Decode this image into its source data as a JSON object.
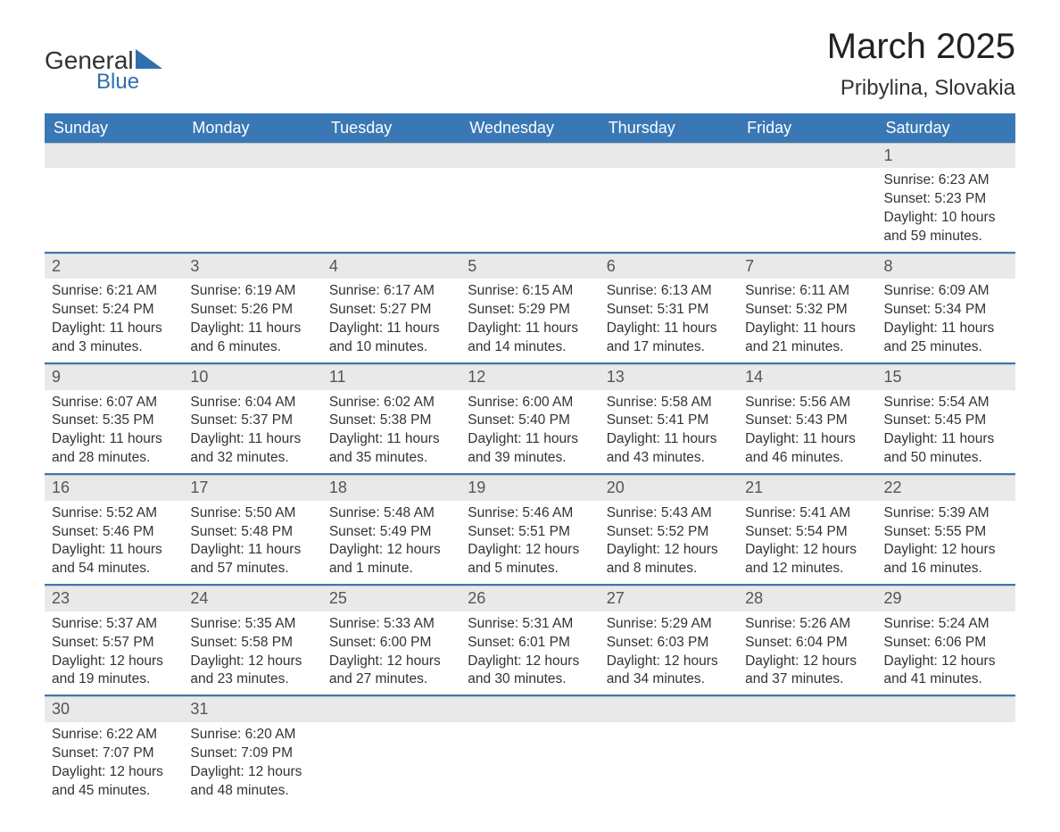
{
  "brand": {
    "general": "General",
    "blue": "Blue"
  },
  "title": "March 2025",
  "location": "Pribylina, Slovakia",
  "colors": {
    "header_bg": "#3a78b5",
    "header_text": "#ffffff",
    "daynum_bg": "#e9e9e9",
    "row_border": "#3a78b5",
    "body_text": "#333333",
    "logo_blue": "#2f6fad"
  },
  "font": {
    "family": "Arial",
    "title_size_pt": 30,
    "location_size_pt": 18,
    "header_size_pt": 14,
    "body_size_pt": 11
  },
  "days_of_week": [
    "Sunday",
    "Monday",
    "Tuesday",
    "Wednesday",
    "Thursday",
    "Friday",
    "Saturday"
  ],
  "weeks": [
    [
      null,
      null,
      null,
      null,
      null,
      null,
      {
        "day": "1",
        "sunrise": "Sunrise: 6:23 AM",
        "sunset": "Sunset: 5:23 PM",
        "daylight": "Daylight: 10 hours and 59 minutes."
      }
    ],
    [
      {
        "day": "2",
        "sunrise": "Sunrise: 6:21 AM",
        "sunset": "Sunset: 5:24 PM",
        "daylight": "Daylight: 11 hours and 3 minutes."
      },
      {
        "day": "3",
        "sunrise": "Sunrise: 6:19 AM",
        "sunset": "Sunset: 5:26 PM",
        "daylight": "Daylight: 11 hours and 6 minutes."
      },
      {
        "day": "4",
        "sunrise": "Sunrise: 6:17 AM",
        "sunset": "Sunset: 5:27 PM",
        "daylight": "Daylight: 11 hours and 10 minutes."
      },
      {
        "day": "5",
        "sunrise": "Sunrise: 6:15 AM",
        "sunset": "Sunset: 5:29 PM",
        "daylight": "Daylight: 11 hours and 14 minutes."
      },
      {
        "day": "6",
        "sunrise": "Sunrise: 6:13 AM",
        "sunset": "Sunset: 5:31 PM",
        "daylight": "Daylight: 11 hours and 17 minutes."
      },
      {
        "day": "7",
        "sunrise": "Sunrise: 6:11 AM",
        "sunset": "Sunset: 5:32 PM",
        "daylight": "Daylight: 11 hours and 21 minutes."
      },
      {
        "day": "8",
        "sunrise": "Sunrise: 6:09 AM",
        "sunset": "Sunset: 5:34 PM",
        "daylight": "Daylight: 11 hours and 25 minutes."
      }
    ],
    [
      {
        "day": "9",
        "sunrise": "Sunrise: 6:07 AM",
        "sunset": "Sunset: 5:35 PM",
        "daylight": "Daylight: 11 hours and 28 minutes."
      },
      {
        "day": "10",
        "sunrise": "Sunrise: 6:04 AM",
        "sunset": "Sunset: 5:37 PM",
        "daylight": "Daylight: 11 hours and 32 minutes."
      },
      {
        "day": "11",
        "sunrise": "Sunrise: 6:02 AM",
        "sunset": "Sunset: 5:38 PM",
        "daylight": "Daylight: 11 hours and 35 minutes."
      },
      {
        "day": "12",
        "sunrise": "Sunrise: 6:00 AM",
        "sunset": "Sunset: 5:40 PM",
        "daylight": "Daylight: 11 hours and 39 minutes."
      },
      {
        "day": "13",
        "sunrise": "Sunrise: 5:58 AM",
        "sunset": "Sunset: 5:41 PM",
        "daylight": "Daylight: 11 hours and 43 minutes."
      },
      {
        "day": "14",
        "sunrise": "Sunrise: 5:56 AM",
        "sunset": "Sunset: 5:43 PM",
        "daylight": "Daylight: 11 hours and 46 minutes."
      },
      {
        "day": "15",
        "sunrise": "Sunrise: 5:54 AM",
        "sunset": "Sunset: 5:45 PM",
        "daylight": "Daylight: 11 hours and 50 minutes."
      }
    ],
    [
      {
        "day": "16",
        "sunrise": "Sunrise: 5:52 AM",
        "sunset": "Sunset: 5:46 PM",
        "daylight": "Daylight: 11 hours and 54 minutes."
      },
      {
        "day": "17",
        "sunrise": "Sunrise: 5:50 AM",
        "sunset": "Sunset: 5:48 PM",
        "daylight": "Daylight: 11 hours and 57 minutes."
      },
      {
        "day": "18",
        "sunrise": "Sunrise: 5:48 AM",
        "sunset": "Sunset: 5:49 PM",
        "daylight": "Daylight: 12 hours and 1 minute."
      },
      {
        "day": "19",
        "sunrise": "Sunrise: 5:46 AM",
        "sunset": "Sunset: 5:51 PM",
        "daylight": "Daylight: 12 hours and 5 minutes."
      },
      {
        "day": "20",
        "sunrise": "Sunrise: 5:43 AM",
        "sunset": "Sunset: 5:52 PM",
        "daylight": "Daylight: 12 hours and 8 minutes."
      },
      {
        "day": "21",
        "sunrise": "Sunrise: 5:41 AM",
        "sunset": "Sunset: 5:54 PM",
        "daylight": "Daylight: 12 hours and 12 minutes."
      },
      {
        "day": "22",
        "sunrise": "Sunrise: 5:39 AM",
        "sunset": "Sunset: 5:55 PM",
        "daylight": "Daylight: 12 hours and 16 minutes."
      }
    ],
    [
      {
        "day": "23",
        "sunrise": "Sunrise: 5:37 AM",
        "sunset": "Sunset: 5:57 PM",
        "daylight": "Daylight: 12 hours and 19 minutes."
      },
      {
        "day": "24",
        "sunrise": "Sunrise: 5:35 AM",
        "sunset": "Sunset: 5:58 PM",
        "daylight": "Daylight: 12 hours and 23 minutes."
      },
      {
        "day": "25",
        "sunrise": "Sunrise: 5:33 AM",
        "sunset": "Sunset: 6:00 PM",
        "daylight": "Daylight: 12 hours and 27 minutes."
      },
      {
        "day": "26",
        "sunrise": "Sunrise: 5:31 AM",
        "sunset": "Sunset: 6:01 PM",
        "daylight": "Daylight: 12 hours and 30 minutes."
      },
      {
        "day": "27",
        "sunrise": "Sunrise: 5:29 AM",
        "sunset": "Sunset: 6:03 PM",
        "daylight": "Daylight: 12 hours and 34 minutes."
      },
      {
        "day": "28",
        "sunrise": "Sunrise: 5:26 AM",
        "sunset": "Sunset: 6:04 PM",
        "daylight": "Daylight: 12 hours and 37 minutes."
      },
      {
        "day": "29",
        "sunrise": "Sunrise: 5:24 AM",
        "sunset": "Sunset: 6:06 PM",
        "daylight": "Daylight: 12 hours and 41 minutes."
      }
    ],
    [
      {
        "day": "30",
        "sunrise": "Sunrise: 6:22 AM",
        "sunset": "Sunset: 7:07 PM",
        "daylight": "Daylight: 12 hours and 45 minutes."
      },
      {
        "day": "31",
        "sunrise": "Sunrise: 6:20 AM",
        "sunset": "Sunset: 7:09 PM",
        "daylight": "Daylight: 12 hours and 48 minutes."
      },
      null,
      null,
      null,
      null,
      null
    ]
  ]
}
